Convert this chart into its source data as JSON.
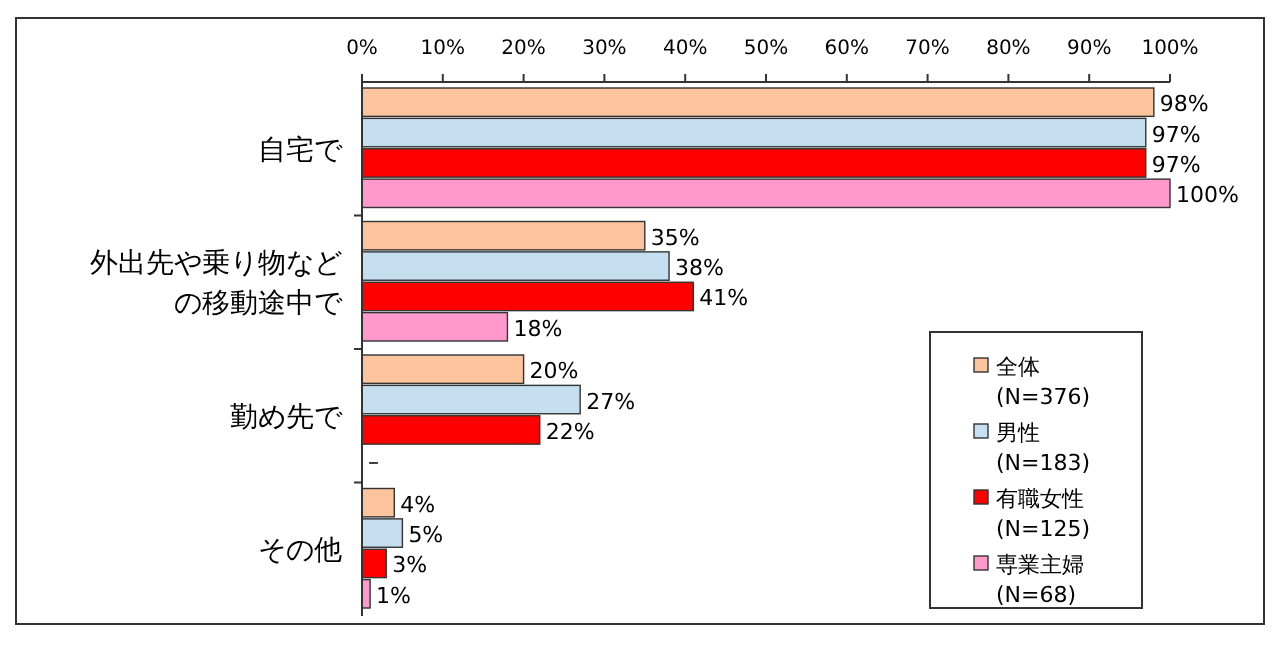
{
  "chart_data": {
    "type": "bar",
    "orientation": "horizontal",
    "categories": [
      "自宅で",
      "外出先や乗り物などの移動途中で",
      "勤め先で",
      "その他"
    ],
    "series": [
      {
        "name": "全体\n(N=376)",
        "color": "#fbc49c",
        "values": [
          98,
          35,
          20,
          4
        ],
        "value_labels": [
          "98%",
          "35%",
          "20%",
          "4%"
        ]
      },
      {
        "name": "男性\n(N=183)",
        "color": "#c6dff0",
        "values": [
          97,
          38,
          27,
          5
        ],
        "value_labels": [
          "97%",
          "38%",
          "27%",
          "5%"
        ]
      },
      {
        "name": "有職女性\n(N=125)",
        "color": "#ff0000",
        "values": [
          97,
          41,
          22,
          3
        ],
        "value_labels": [
          "97%",
          "41%",
          "22%",
          "3%"
        ]
      },
      {
        "name": "専業主婦\n(N=68)",
        "color": "#ff99cc",
        "values": [
          100,
          18,
          null,
          1
        ],
        "value_labels": [
          "100%",
          "18%",
          "–",
          "1%"
        ]
      }
    ],
    "xlim": [
      0,
      100
    ],
    "xticks": [
      {
        "value": 0,
        "label": "0%"
      },
      {
        "value": 10,
        "label": "10%"
      },
      {
        "value": 20,
        "label": "20%"
      },
      {
        "value": 30,
        "label": "30%"
      },
      {
        "value": 40,
        "label": "40%"
      },
      {
        "value": 50,
        "label": "50%"
      },
      {
        "value": 60,
        "label": "60%"
      },
      {
        "value": 70,
        "label": "70%"
      },
      {
        "value": 80,
        "label": "80%"
      },
      {
        "value": 90,
        "label": "90%"
      },
      {
        "value": 100,
        "label": "100%"
      }
    ],
    "legend": "bottom right",
    "grid": false
  }
}
